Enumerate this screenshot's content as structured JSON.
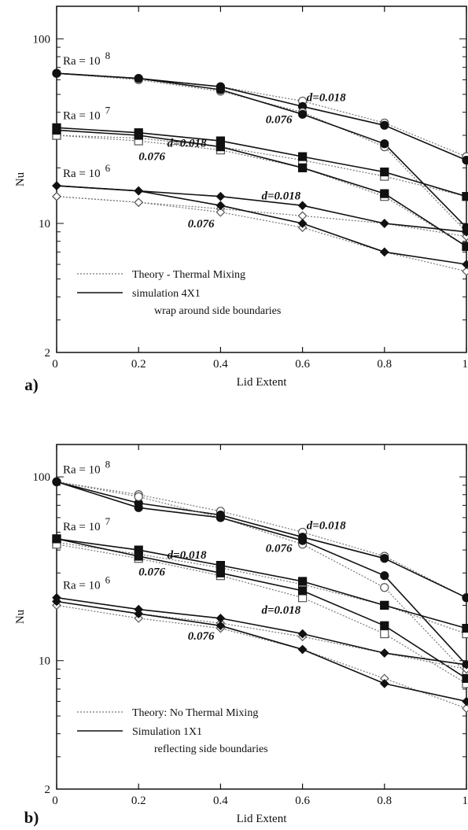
{
  "chart_data": [
    {
      "panel_label": "a)",
      "type": "line",
      "xlabel": "Lid Extent",
      "ylabel": "Nu",
      "xlim": [
        0,
        1
      ],
      "ylim": [
        2,
        150
      ],
      "yscale": "log",
      "x_ticks": [
        "0",
        "0.2",
        "0.4",
        "0.6",
        "0.8",
        "1"
      ],
      "y_ticks": [
        {
          "value": 2,
          "label": "2"
        },
        {
          "value": 10,
          "label": "10"
        },
        {
          "value": 100,
          "label": "100"
        }
      ],
      "legend": {
        "placement": "lower-left",
        "theory_label": "Theory - Thermal Mixing",
        "simulation_label": "simulation 4X1",
        "simulation_note": "wrap around side boundaries"
      },
      "groups": [
        {
          "ra_base": "Ra = 10",
          "ra_exp": "8",
          "marker": "circle",
          "series": [
            {
              "style": "theory",
              "x": [
                0,
                0.2,
                0.4,
                0.6,
                0.8,
                1
              ],
              "y": [
                65,
                61,
                55,
                46,
                35,
                23
              ]
            },
            {
              "style": "simulation",
              "x": [
                0,
                0.2,
                0.4,
                0.6,
                0.8,
                1
              ],
              "y": [
                65,
                61,
                55,
                43,
                34,
                22
              ]
            },
            {
              "style": "theory",
              "x": [
                0,
                0.2,
                0.4,
                0.6,
                0.8,
                1
              ],
              "y": [
                65,
                60,
                52,
                40,
                26,
                9
              ]
            },
            {
              "style": "simulation",
              "x": [
                0,
                0.2,
                0.4,
                0.6,
                0.8,
                1
              ],
              "y": [
                65,
                61,
                53,
                39,
                27,
                9.5
              ]
            }
          ]
        },
        {
          "ra_base": "Ra = 10",
          "ra_exp": "7",
          "marker": "square",
          "series": [
            {
              "style": "theory",
              "x": [
                0,
                0.2,
                0.4,
                0.6,
                0.8,
                1
              ],
              "y": [
                30,
                29,
                26,
                22,
                18,
                14
              ]
            },
            {
              "style": "simulation",
              "x": [
                0,
                0.2,
                0.4,
                0.6,
                0.8,
                1
              ],
              "y": [
                33,
                31,
                28,
                23,
                19,
                14
              ]
            },
            {
              "style": "theory",
              "x": [
                0,
                0.2,
                0.4,
                0.6,
                0.8,
                1
              ],
              "y": [
                30,
                28,
                25,
                20,
                14,
                7.5
              ]
            },
            {
              "style": "simulation",
              "x": [
                0,
                0.2,
                0.4,
                0.6,
                0.8,
                1
              ],
              "y": [
                32,
                30,
                26,
                20,
                14.5,
                7.5
              ]
            }
          ]
        },
        {
          "ra_base": "Ra = 10",
          "ra_exp": "6",
          "marker": "diamond",
          "series": [
            {
              "style": "theory",
              "x": [
                0,
                0.2,
                0.4,
                0.6,
                0.8,
                1
              ],
              "y": [
                14,
                13,
                12,
                11,
                10,
                8.5
              ]
            },
            {
              "style": "simulation",
              "x": [
                0,
                0.2,
                0.4,
                0.6,
                0.8,
                1
              ],
              "y": [
                16,
                15,
                14,
                12.5,
                10,
                9
              ]
            },
            {
              "style": "theory",
              "x": [
                0,
                0.2,
                0.4,
                0.6,
                0.8,
                1
              ],
              "y": [
                14,
                13,
                11.5,
                9.5,
                7,
                5.5
              ]
            },
            {
              "style": "simulation",
              "x": [
                0,
                0.2,
                0.4,
                0.6,
                0.8,
                1
              ],
              "y": [
                16,
                15,
                12.5,
                10,
                7,
                6
              ]
            }
          ]
        }
      ],
      "annotations": [
        {
          "text": "d=0.018",
          "x": 0.61,
          "y": 46
        },
        {
          "text": "0.076",
          "x": 0.51,
          "y": 35
        },
        {
          "text": "d=0.018",
          "x": 0.27,
          "y": 26
        },
        {
          "text": "0.076",
          "x": 0.2,
          "y": 22
        },
        {
          "text": "d=0.018",
          "x": 0.5,
          "y": 13.5
        },
        {
          "text": "0.076",
          "x": 0.32,
          "y": 9.5
        }
      ]
    },
    {
      "panel_label": "b)",
      "type": "line",
      "xlabel": "Lid Extent",
      "ylabel": "Nu",
      "xlim": [
        0,
        1
      ],
      "ylim": [
        2,
        150
      ],
      "yscale": "log",
      "x_ticks": [
        "0",
        "0.2",
        "0.4",
        "0.6",
        "0.8",
        "1"
      ],
      "y_ticks": [
        {
          "value": 2,
          "label": "2"
        },
        {
          "value": 10,
          "label": "10"
        },
        {
          "value": 100,
          "label": "100"
        }
      ],
      "legend": {
        "placement": "lower-left",
        "theory_label": "Theory: No Thermal Mixing",
        "simulation_label": "Simulation 1X1",
        "simulation_note": "reflecting side boundaries"
      },
      "groups": [
        {
          "ra_base": "Ra = 10",
          "ra_exp": "8",
          "marker": "circle",
          "series": [
            {
              "style": "theory",
              "x": [
                0,
                0.2,
                0.4,
                0.6,
                0.8,
                1
              ],
              "y": [
                94,
                80,
                65,
                50,
                37,
                22
              ]
            },
            {
              "style": "simulation",
              "x": [
                0,
                0.2,
                0.4,
                0.6,
                0.8,
                1
              ],
              "y": [
                94,
                72,
                62,
                47,
                36,
                22
              ]
            },
            {
              "style": "theory",
              "x": [
                0,
                0.2,
                0.4,
                0.6,
                0.8,
                1
              ],
              "y": [
                94,
                78,
                60,
                43,
                25,
                8.5
              ]
            },
            {
              "style": "simulation",
              "x": [
                0,
                0.2,
                0.4,
                0.6,
                0.8,
                1
              ],
              "y": [
                94,
                68,
                60,
                45,
                29,
                9.5
              ]
            }
          ]
        },
        {
          "ra_base": "Ra = 10",
          "ra_exp": "7",
          "marker": "square",
          "series": [
            {
              "style": "theory",
              "x": [
                0,
                0.2,
                0.4,
                0.6,
                0.8,
                1
              ],
              "y": [
                44,
                38,
                32,
                26,
                20,
                14
              ]
            },
            {
              "style": "simulation",
              "x": [
                0,
                0.2,
                0.4,
                0.6,
                0.8,
                1
              ],
              "y": [
                46,
                40,
                33,
                27,
                20,
                15
              ]
            },
            {
              "style": "theory",
              "x": [
                0,
                0.2,
                0.4,
                0.6,
                0.8,
                1
              ],
              "y": [
                43,
                36,
                29,
                22,
                14,
                7.5
              ]
            },
            {
              "style": "simulation",
              "x": [
                0,
                0.2,
                0.4,
                0.6,
                0.8,
                1
              ],
              "y": [
                46,
                37,
                30,
                24,
                15.5,
                8
              ]
            }
          ]
        },
        {
          "ra_base": "Ra = 10",
          "ra_exp": "6",
          "marker": "diamond",
          "series": [
            {
              "style": "theory",
              "x": [
                0,
                0.2,
                0.4,
                0.6,
                0.8,
                1
              ],
              "y": [
                21,
                18,
                16,
                13.5,
                11,
                9
              ]
            },
            {
              "style": "simulation",
              "x": [
                0,
                0.2,
                0.4,
                0.6,
                0.8,
                1
              ],
              "y": [
                22,
                19,
                17,
                14,
                11,
                9.5
              ]
            },
            {
              "style": "theory",
              "x": [
                0,
                0.2,
                0.4,
                0.6,
                0.8,
                1
              ],
              "y": [
                20,
                17,
                15,
                11.5,
                8,
                5.5
              ]
            },
            {
              "style": "simulation",
              "x": [
                0,
                0.2,
                0.4,
                0.6,
                0.8,
                1
              ],
              "y": [
                21,
                18,
                15.5,
                11.5,
                7.5,
                6
              ]
            }
          ]
        }
      ],
      "annotations": [
        {
          "text": "d=0.018",
          "x": 0.61,
          "y": 52
        },
        {
          "text": "0.076",
          "x": 0.51,
          "y": 39
        },
        {
          "text": "d=0.018",
          "x": 0.27,
          "y": 36
        },
        {
          "text": "0.076",
          "x": 0.2,
          "y": 29
        },
        {
          "text": "d=0.018",
          "x": 0.5,
          "y": 18
        },
        {
          "text": "0.076",
          "x": 0.32,
          "y": 13
        }
      ]
    }
  ]
}
